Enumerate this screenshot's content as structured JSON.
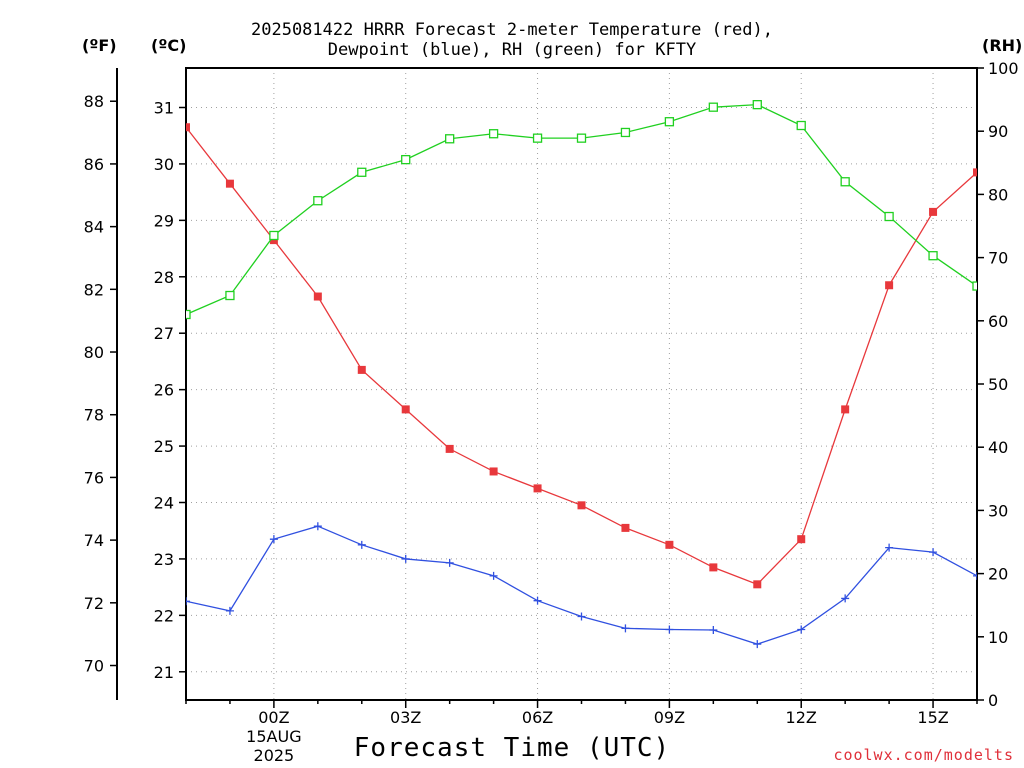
{
  "title": {
    "line1": "2025081422 HRRR Forecast 2-meter Temperature (red),",
    "line2": "Dewpoint (blue), RH (green) for KFTY"
  },
  "units": {
    "fahrenheit": "(ºF)",
    "celsius": "(ºC)",
    "rh": "(RH)"
  },
  "xlabel": "Forecast Time (UTC)",
  "credit": "coolwx.com/modelts",
  "colors": {
    "temperature": "#e8383c",
    "dewpoint": "#3050e0",
    "rh": "#20d020",
    "grid": "#a0a0a0"
  },
  "chart_data": {
    "type": "line",
    "x": [
      "22Z",
      "23Z",
      "00Z",
      "01Z",
      "02Z",
      "03Z",
      "04Z",
      "05Z",
      "06Z",
      "07Z",
      "08Z",
      "09Z",
      "10Z",
      "11Z",
      "12Z",
      "13Z",
      "14Z",
      "15Z",
      "16Z"
    ],
    "x_tick_labels": [
      "00Z",
      "03Z",
      "06Z",
      "09Z",
      "12Z",
      "15Z"
    ],
    "x_date_label": [
      "15AUG",
      "2025"
    ],
    "y_left_celsius": {
      "range": [
        20.5,
        31.7
      ],
      "ticks": [
        21,
        22,
        23,
        24,
        25,
        26,
        27,
        28,
        29,
        30,
        31
      ]
    },
    "y_left_fahrenheit": {
      "range": [
        68.9,
        89.06
      ],
      "ticks": [
        70,
        72,
        74,
        76,
        78,
        80,
        82,
        84,
        86,
        88
      ]
    },
    "y_right_rh": {
      "range": [
        0,
        100
      ],
      "ticks": [
        0,
        10,
        20,
        30,
        40,
        50,
        60,
        70,
        80,
        90,
        100
      ]
    },
    "grid": true,
    "series": [
      {
        "key": "temperature",
        "axis": "celsius",
        "marker": "filled-square",
        "values": [
          30.65,
          29.65,
          28.65,
          27.65,
          26.35,
          25.65,
          24.95,
          24.55,
          24.25,
          23.95,
          23.55,
          23.25,
          22.85,
          22.55,
          23.35,
          25.65,
          27.85,
          29.15,
          29.85
        ]
      },
      {
        "key": "dewpoint",
        "axis": "celsius",
        "marker": "plus",
        "values": [
          22.25,
          22.08,
          23.35,
          23.58,
          23.25,
          23.0,
          22.93,
          22.7,
          22.26,
          21.98,
          21.77,
          21.75,
          21.74,
          21.49,
          21.75,
          22.3,
          23.2,
          23.12,
          22.7
        ]
      },
      {
        "key": "rh",
        "axis": "rh",
        "marker": "open-square",
        "values": [
          61,
          64,
          73.5,
          79,
          83.5,
          85.5,
          88.8,
          89.6,
          88.9,
          88.9,
          89.8,
          91.5,
          93.8,
          94.2,
          90.9,
          82,
          76.5,
          70.3,
          65.5
        ]
      }
    ]
  }
}
